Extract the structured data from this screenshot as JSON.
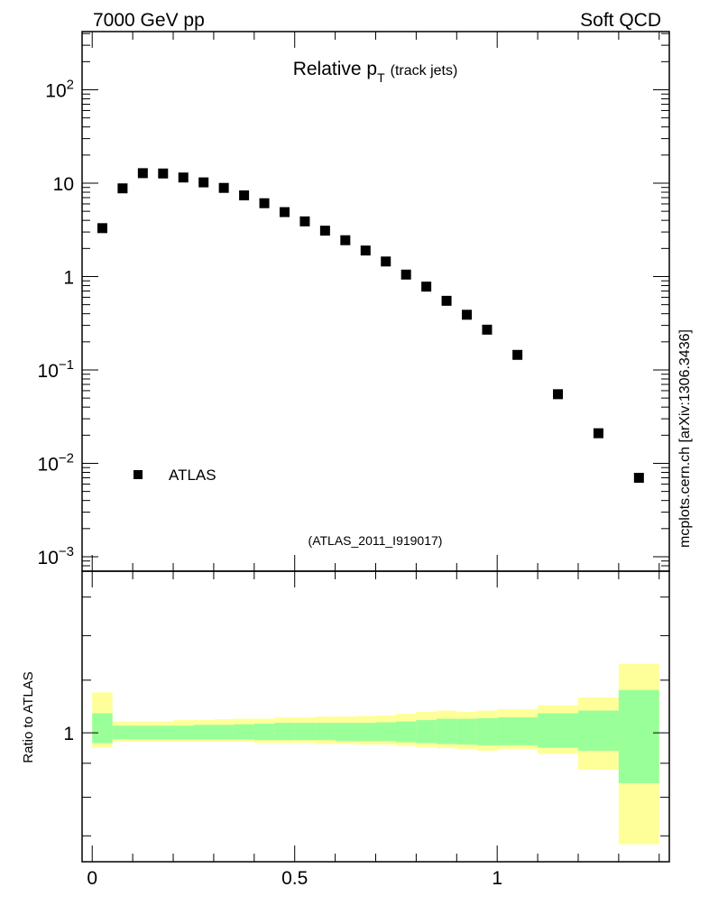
{
  "header": {
    "energy_label": "7000 GeV pp",
    "process_label": "Soft QCD",
    "side_label": "mcplots.cern.ch [arXiv:1306.3436]"
  },
  "chart_data": [
    {
      "type": "scatter",
      "title_main": "Relative p",
      "title_sub": "T",
      "title_suffix": "(track jets)",
      "analysis_label": "(ATLAS_2011_I919017)",
      "yscale": "log",
      "xlim": [
        -0.025,
        1.425
      ],
      "ylim": [
        0.0007,
        420
      ],
      "y_ticks": [
        {
          "value": 0.001,
          "base": "10",
          "exp": "−3"
        },
        {
          "value": 0.01,
          "base": "10",
          "exp": "−2"
        },
        {
          "value": 0.1,
          "base": "10",
          "exp": "−1"
        },
        {
          "value": 1,
          "base": "1",
          "exp": ""
        },
        {
          "value": 10,
          "base": "10",
          "exp": ""
        },
        {
          "value": 100,
          "base": "10",
          "exp": "2"
        }
      ],
      "legend": {
        "position": "bottom-left",
        "entries": [
          "ATLAS"
        ]
      },
      "series": [
        {
          "name": "ATLAS",
          "color": "#000000",
          "x": [
            0.025,
            0.075,
            0.125,
            0.175,
            0.225,
            0.275,
            0.325,
            0.375,
            0.425,
            0.475,
            0.525,
            0.575,
            0.625,
            0.675,
            0.725,
            0.775,
            0.825,
            0.875,
            0.925,
            0.975,
            1.05,
            1.15,
            1.25,
            1.35
          ],
          "y": [
            3.3,
            8.8,
            12.8,
            12.7,
            11.5,
            10.2,
            8.9,
            7.4,
            6.1,
            4.9,
            3.9,
            3.1,
            2.45,
            1.9,
            1.45,
            1.05,
            0.78,
            0.55,
            0.39,
            0.27,
            0.145,
            0.055,
            0.021,
            0.007
          ]
        }
      ]
    },
    {
      "type": "area",
      "ylabel": "Ratio to ATLAS",
      "yscale": "log",
      "xlim": [
        -0.025,
        1.425
      ],
      "ylim": [
        0.64,
        1.75
      ],
      "x_ticks": [
        {
          "value": 0,
          "label": "0"
        },
        {
          "value": 0.5,
          "label": "0.5"
        },
        {
          "value": 1,
          "label": "1"
        }
      ],
      "y_ticks": [
        {
          "value": 1,
          "label": "1"
        }
      ],
      "bands": {
        "bin_edges": [
          0,
          0.05,
          0.1,
          0.15,
          0.2,
          0.25,
          0.3,
          0.35,
          0.4,
          0.45,
          0.5,
          0.55,
          0.6,
          0.65,
          0.7,
          0.75,
          0.8,
          0.85,
          0.9,
          0.95,
          1.0,
          1.1,
          1.2,
          1.3,
          1.4
        ],
        "stat_color": "#99ff99",
        "total_color": "#ffff99",
        "stat_lo": [
          0.965,
          0.978,
          0.978,
          0.978,
          0.978,
          0.978,
          0.978,
          0.978,
          0.975,
          0.975,
          0.975,
          0.975,
          0.972,
          0.972,
          0.972,
          0.968,
          0.965,
          0.962,
          0.96,
          0.958,
          0.958,
          0.95,
          0.94,
          0.84
        ],
        "stat_hi": [
          1.07,
          1.025,
          1.025,
          1.025,
          1.025,
          1.028,
          1.028,
          1.03,
          1.032,
          1.035,
          1.035,
          1.035,
          1.035,
          1.035,
          1.037,
          1.04,
          1.045,
          1.05,
          1.05,
          1.052,
          1.055,
          1.07,
          1.08,
          1.16
        ],
        "total_lo": [
          0.95,
          0.97,
          0.97,
          0.97,
          0.97,
          0.97,
          0.97,
          0.97,
          0.965,
          0.965,
          0.965,
          0.962,
          0.962,
          0.96,
          0.96,
          0.955,
          0.952,
          0.948,
          0.945,
          0.94,
          0.945,
          0.93,
          0.88,
          0.68
        ],
        "total_hi": [
          1.15,
          1.04,
          1.04,
          1.04,
          1.045,
          1.045,
          1.048,
          1.05,
          1.05,
          1.055,
          1.055,
          1.058,
          1.058,
          1.06,
          1.062,
          1.068,
          1.075,
          1.08,
          1.075,
          1.08,
          1.085,
          1.1,
          1.13,
          1.27
        ]
      }
    }
  ]
}
